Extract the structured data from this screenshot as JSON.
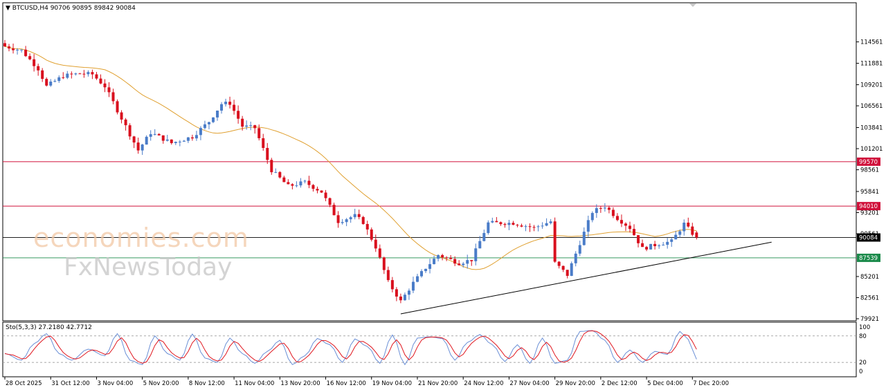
{
  "header": {
    "symbol": "BTCUSD,H4",
    "open": "90706",
    "high": "90895",
    "low": "89842",
    "close": "90084",
    "dropdown_icon": "triangle-down-icon"
  },
  "stochastic": {
    "label": "Sto(5,3,3)",
    "main_value": "27.2180",
    "signal_value": "42.7712",
    "levels": [
      80,
      20
    ],
    "scale_labels": [
      "100",
      "80",
      "20",
      "0"
    ],
    "main_color": "#6a8fd6",
    "signal_color": "#e0161e"
  },
  "watermark": {
    "logo": "economies.com",
    "sub": "FxNewsToday"
  },
  "chart_data": {
    "type": "candlestick",
    "ylim": [
      79921,
      116600
    ],
    "y_ticks": [
      "114561",
      "111881",
      "109201",
      "106561",
      "103841",
      "101201",
      "98561",
      "95841",
      "93201",
      "90561",
      "85201",
      "82561",
      "79921"
    ],
    "x_ticks": [
      "28 Oct 2025",
      "31 Oct 12:00",
      "3 Nov 04:00",
      "5 Nov 20:00",
      "8 Nov 12:00",
      "11 Nov 04:00",
      "13 Nov 20:00",
      "16 Nov 12:00",
      "19 Nov 04:00",
      "21 Nov 20:00",
      "24 Nov 12:00",
      "27 Nov 04:00",
      "29 Nov 20:00",
      "2 Dec 12:00",
      "5 Dec 04:00",
      "7 Dec 20:00"
    ],
    "horizontal_lines": [
      {
        "value": 99570,
        "label": "99570",
        "color": "#d0103a"
      },
      {
        "value": 94010,
        "label": "94010",
        "color": "#d0103a"
      },
      {
        "value": 90084,
        "label": "90084",
        "color": "#000000"
      },
      {
        "value": 87539,
        "label": "87539",
        "color": "#1a8a4a"
      }
    ],
    "trendline": {
      "start": {
        "bar": 95,
        "price": 80530
      },
      "end": {
        "bar": 184,
        "price": 89500
      }
    },
    "moving_average_color": "#e0a030",
    "bull_color": "#4a7cc8",
    "bear_color": "#d9101e",
    "anchors": [
      [
        0,
        114000
      ],
      [
        4,
        113500
      ],
      [
        8,
        111200
      ],
      [
        10,
        109000
      ],
      [
        14,
        110300
      ],
      [
        18,
        110600
      ],
      [
        21,
        110500
      ],
      [
        24,
        109000
      ],
      [
        26,
        107000
      ],
      [
        30,
        103000
      ],
      [
        32,
        101000
      ],
      [
        35,
        103200
      ],
      [
        40,
        101900
      ],
      [
        45,
        102700
      ],
      [
        49,
        104600
      ],
      [
        52,
        106800
      ],
      [
        54,
        106900
      ],
      [
        57,
        104000
      ],
      [
        60,
        103800
      ],
      [
        64,
        98500
      ],
      [
        68,
        96500
      ],
      [
        72,
        97000
      ],
      [
        76,
        95800
      ],
      [
        80,
        92100
      ],
      [
        84,
        92800
      ],
      [
        86,
        92000
      ],
      [
        89,
        88900
      ],
      [
        92,
        84500
      ],
      [
        95,
        82100
      ],
      [
        98,
        84400
      ],
      [
        101,
        86300
      ],
      [
        104,
        87900
      ],
      [
        109,
        86900
      ],
      [
        112,
        87300
      ],
      [
        116,
        91900
      ],
      [
        122,
        91900
      ],
      [
        127,
        91300
      ],
      [
        131,
        92100
      ],
      [
        132,
        86900
      ],
      [
        135,
        85400
      ],
      [
        138,
        89400
      ],
      [
        141,
        93300
      ],
      [
        144,
        94000
      ],
      [
        147,
        92500
      ],
      [
        150,
        91300
      ],
      [
        153,
        88700
      ],
      [
        157,
        89300
      ],
      [
        160,
        89600
      ],
      [
        163,
        91800
      ],
      [
        165,
        90600
      ],
      [
        166,
        90084
      ]
    ],
    "stoch_anchors": [
      [
        0,
        40
      ],
      [
        4,
        25
      ],
      [
        7,
        62
      ],
      [
        10,
        85
      ],
      [
        13,
        40
      ],
      [
        16,
        25
      ],
      [
        20,
        50
      ],
      [
        24,
        35
      ],
      [
        27,
        85
      ],
      [
        30,
        25
      ],
      [
        33,
        15
      ],
      [
        36,
        80
      ],
      [
        39,
        40
      ],
      [
        42,
        25
      ],
      [
        45,
        84
      ],
      [
        48,
        30
      ],
      [
        51,
        20
      ],
      [
        54,
        75
      ],
      [
        57,
        40
      ],
      [
        60,
        18
      ],
      [
        63,
        45
      ],
      [
        66,
        70
      ],
      [
        69,
        15
      ],
      [
        72,
        35
      ],
      [
        75,
        74
      ],
      [
        78,
        60
      ],
      [
        81,
        20
      ],
      [
        84,
        73
      ],
      [
        87,
        56
      ],
      [
        90,
        18
      ],
      [
        93,
        82
      ],
      [
        96,
        15
      ],
      [
        99,
        75
      ],
      [
        102,
        78
      ],
      [
        105,
        74
      ],
      [
        108,
        25
      ],
      [
        111,
        65
      ],
      [
        114,
        83
      ],
      [
        117,
        60
      ],
      [
        120,
        22
      ],
      [
        123,
        60
      ],
      [
        126,
        18
      ],
      [
        129,
        75
      ],
      [
        132,
        18
      ],
      [
        135,
        25
      ],
      [
        138,
        90
      ],
      [
        141,
        92
      ],
      [
        144,
        70
      ],
      [
        147,
        20
      ],
      [
        150,
        48
      ],
      [
        153,
        20
      ],
      [
        156,
        45
      ],
      [
        159,
        38
      ],
      [
        162,
        90
      ],
      [
        164,
        72
      ],
      [
        166,
        27
      ]
    ]
  }
}
